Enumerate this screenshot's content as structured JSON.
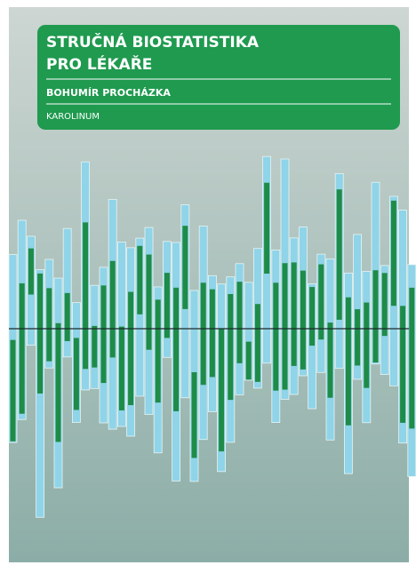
{
  "header": {
    "title_lines": [
      "STRUČNÁ BIOSTATISTIKA",
      "PRO LÉKAŘE"
    ],
    "author": "BOHUMÍR PROCHÁZKA",
    "publisher": "KAROLINUM"
  }
}
